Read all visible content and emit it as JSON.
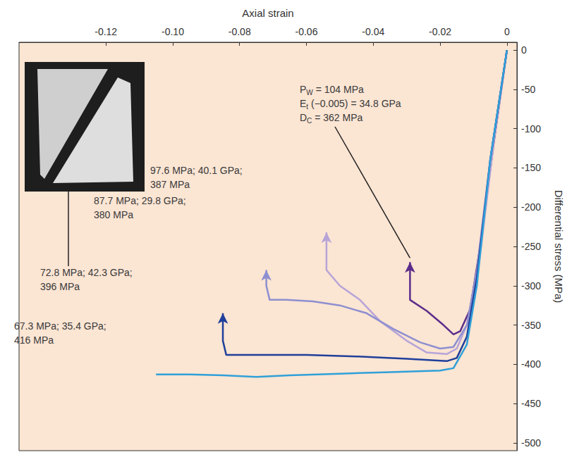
{
  "chart_data": {
    "type": "line",
    "x_label": "Axial strain",
    "y_label": "Differential stress (MPa)",
    "xlim": [
      -0.146,
      0.003
    ],
    "xticks": [
      -0.12,
      {
        "value": -0.1,
        "label": "-0.10"
      },
      -0.08,
      -0.06,
      -0.04,
      -0.02,
      0
    ],
    "ylim": [
      -510,
      10
    ],
    "yticks": [
      0,
      -50,
      -100,
      -150,
      -200,
      -250,
      -300,
      -350,
      -400,
      -450,
      -500
    ],
    "grid": false,
    "series": [
      {
        "color": "#5c2d8a",
        "marker": "arrow",
        "label": [
          [
            "P",
            "W",
            " = 104 MPa"
          ],
          [
            "E",
            "t",
            " (−0.005) = 34.8 GPa"
          ],
          [
            "D",
            "C",
            " = 362 MPa"
          ]
        ],
        "x": [
          0,
          -0.004,
          -0.008,
          -0.011,
          -0.014,
          -0.016,
          -0.019,
          -0.024,
          -0.029,
          -0.029
        ],
        "values": [
          0,
          -120,
          -250,
          -330,
          -358,
          -362,
          -350,
          -332,
          -318,
          -270
        ]
      },
      {
        "color": "#b6a4d8",
        "marker": "arrow",
        "label": [
          [
            "97.6 MPa; 40.1 GPa;"
          ],
          [
            "387 MPa"
          ]
        ],
        "x": [
          0,
          -0.004,
          -0.008,
          -0.011,
          -0.015,
          -0.018,
          -0.024,
          -0.03,
          -0.038,
          -0.044,
          -0.05,
          -0.054,
          -0.054
        ],
        "values": [
          0,
          -120,
          -260,
          -340,
          -380,
          -387,
          -385,
          -370,
          -345,
          -318,
          -300,
          -280,
          -232
        ]
      },
      {
        "color": "#8e8fd0",
        "marker": "arrow",
        "label": [
          [
            "87.7 MPa; 29.8 GPa;"
          ],
          [
            "380 MPa"
          ]
        ],
        "x": [
          0,
          -0.005,
          -0.009,
          -0.012,
          -0.016,
          -0.02,
          -0.026,
          -0.034,
          -0.042,
          -0.05,
          -0.058,
          -0.066,
          -0.071,
          -0.072,
          -0.072
        ],
        "values": [
          0,
          -140,
          -280,
          -350,
          -378,
          -380,
          -372,
          -355,
          -335,
          -325,
          -320,
          -318,
          -318,
          -300,
          -280
        ]
      },
      {
        "color": "#1f3f9a",
        "marker": "arrow",
        "label": [
          [
            "72.8 MPa; 42.3 GPa;"
          ],
          [
            "396 MPa"
          ]
        ],
        "x": [
          0,
          -0.005,
          -0.009,
          -0.012,
          -0.015,
          -0.018,
          -0.03,
          -0.045,
          -0.06,
          -0.075,
          -0.084,
          -0.085,
          -0.085
        ],
        "values": [
          0,
          -140,
          -290,
          -365,
          -392,
          -396,
          -393,
          -390,
          -388,
          -388,
          -388,
          -370,
          -335
        ]
      },
      {
        "color": "#2fa0d8",
        "marker": "none",
        "label": [
          [
            "67.3 MPa; 35.4 GPa;"
          ],
          [
            "416 MPa"
          ]
        ],
        "x": [
          0,
          -0.005,
          -0.009,
          -0.012,
          -0.016,
          -0.02,
          -0.035,
          -0.05,
          -0.065,
          -0.075,
          -0.085,
          -0.095,
          -0.105
        ],
        "values": [
          0,
          -140,
          -300,
          -375,
          -405,
          -408,
          -410,
          -412,
          -414,
          -416,
          -414,
          -413,
          -413
        ]
      }
    ]
  }
}
